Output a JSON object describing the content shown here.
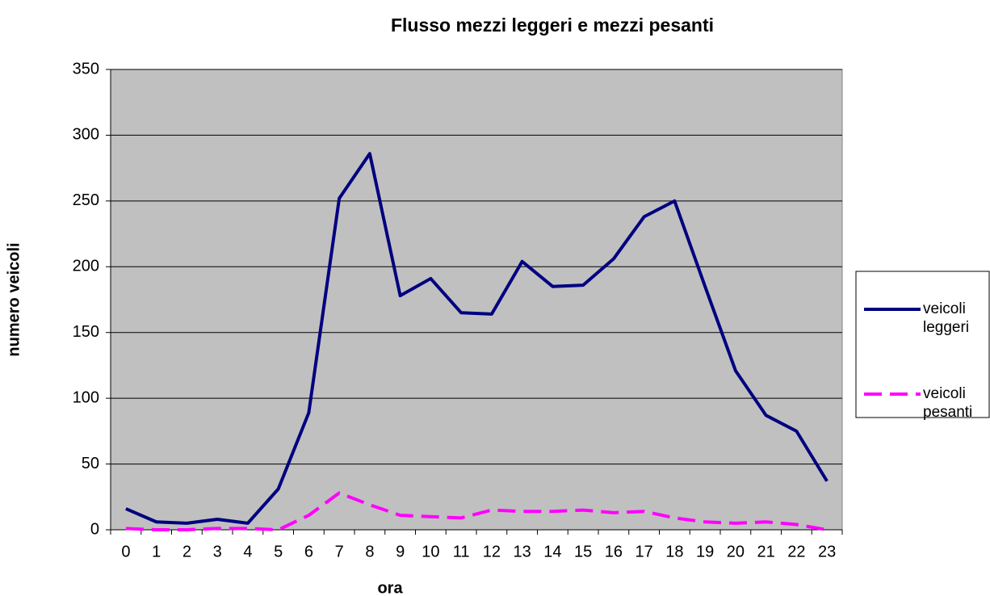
{
  "chart_data": {
    "type": "line",
    "title": "Flusso mezzi leggeri e mezzi pesanti",
    "xlabel": "ora",
    "ylabel": "numero veicoli",
    "categories": [
      "0",
      "1",
      "2",
      "3",
      "4",
      "5",
      "6",
      "7",
      "8",
      "9",
      "10",
      "11",
      "12",
      "13",
      "14",
      "15",
      "16",
      "17",
      "18",
      "19",
      "20",
      "21",
      "22",
      "23"
    ],
    "series": [
      {
        "name": "veicoli leggeri",
        "color": "#000080",
        "dash": "solid",
        "values": [
          16,
          6,
          5,
          8,
          5,
          31,
          89,
          252,
          286,
          178,
          191,
          165,
          164,
          204,
          185,
          186,
          206,
          238,
          250,
          185,
          121,
          87,
          75,
          37
        ]
      },
      {
        "name": "veicoli pesanti",
        "color": "#ff00ff",
        "dash": "dashed",
        "values": [
          1,
          0,
          0,
          1,
          1,
          0,
          11,
          28,
          19,
          11,
          10,
          9,
          15,
          14,
          14,
          15,
          13,
          14,
          9,
          6,
          5,
          6,
          4,
          0
        ]
      }
    ],
    "ylim": [
      0,
      350
    ],
    "yticks": [
      0,
      50,
      100,
      150,
      200,
      250,
      300,
      350
    ],
    "grid": true,
    "legend": "right"
  }
}
